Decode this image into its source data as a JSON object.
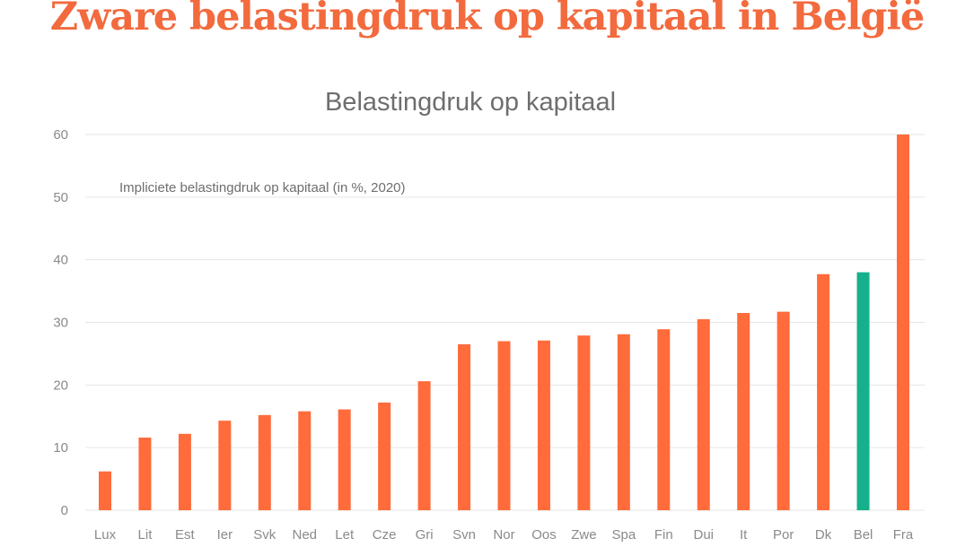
{
  "headline": "Zware belastingdruk op kapitaal in België",
  "colors": {
    "default_bar": "#ff6b3b",
    "highlight_bar": "#16b08a",
    "headline": "#f26a3d"
  },
  "chart_data": {
    "type": "bar",
    "title": "Belastingdruk op kapitaal",
    "annotation": "Impliciete belastingdruk op kapitaal (in %, 2020)",
    "xlabel": "",
    "ylabel": "",
    "ylim": [
      0,
      60
    ],
    "yticks": [
      0,
      10,
      20,
      30,
      40,
      50,
      60
    ],
    "grid": true,
    "categories": [
      "Lux",
      "Lit",
      "Est",
      "Ier",
      "Svk",
      "Ned",
      "Let",
      "Cze",
      "Gri",
      "Svn",
      "Nor",
      "Oos",
      "Zwe",
      "Spa",
      "Fin",
      "Dui",
      "It",
      "Por",
      "Dk",
      "Bel",
      "Fra"
    ],
    "values": [
      6.2,
      11.6,
      12.2,
      14.3,
      15.2,
      15.8,
      16.1,
      17.2,
      20.6,
      26.5,
      27.0,
      27.1,
      27.9,
      28.1,
      28.9,
      30.5,
      31.5,
      31.7,
      37.7,
      38.0,
      60.0
    ],
    "highlight": "Bel"
  }
}
